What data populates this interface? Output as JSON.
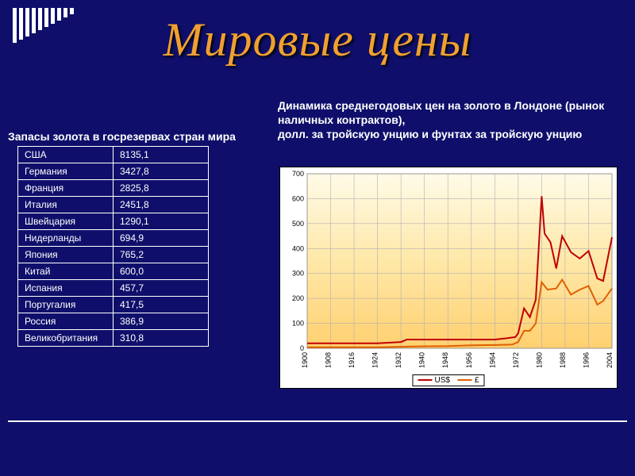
{
  "title": "Мировые цены",
  "decor_bars_heights": [
    44,
    40,
    36,
    32,
    28,
    24,
    20,
    16,
    12,
    8
  ],
  "table": {
    "title": "Запасы золота в госрезервах стран мира",
    "columns_width": [
      120,
      120
    ],
    "rows": [
      [
        "США",
        "8135,1"
      ],
      [
        "Германия",
        "3427,8"
      ],
      [
        "Франция",
        "2825,8"
      ],
      [
        "Италия",
        "2451,8"
      ],
      [
        "Швейцария",
        "1290,1"
      ],
      [
        "Нидерланды",
        "694,9"
      ],
      [
        "Япония",
        "765,2"
      ],
      [
        "Китай",
        "600,0"
      ],
      [
        "Испания",
        "457,7"
      ],
      [
        "Португалия",
        "417,5"
      ],
      [
        "Россия",
        "386,9"
      ],
      [
        "Великобритания",
        "310,8"
      ]
    ],
    "border_color": "#ffffff",
    "text_color": "#ffffff",
    "fontsize": 12
  },
  "chart": {
    "type": "line",
    "title": "Динамика среднегодовых цен на золото в Лондоне (рынок наличных контрактов),\nдолл. за тройскую унцию и фунтах за тройскую унцию",
    "background_color": "#ffffff",
    "plot_bg_gradient": [
      "#ffd070",
      "#ffe8a8",
      "#fffbe8"
    ],
    "grid_color": "#b0b0b0",
    "axis_fontsize": 9,
    "ylim": [
      0,
      700
    ],
    "ytick_step": 100,
    "x_labels": [
      "1900",
      "1908",
      "1916",
      "1924",
      "1932",
      "1940",
      "1948",
      "1956",
      "1964",
      "1972",
      "1980",
      "1988",
      "1996",
      "2004"
    ],
    "x_numeric": [
      1900,
      1908,
      1916,
      1924,
      1932,
      1940,
      1948,
      1956,
      1964,
      1972,
      1980,
      1988,
      1996,
      2004
    ],
    "xlim": [
      1900,
      2004
    ],
    "series": [
      {
        "name": "US$",
        "color": "#c00000",
        "line_width": 2,
        "points": [
          [
            1900,
            20
          ],
          [
            1908,
            20
          ],
          [
            1916,
            20
          ],
          [
            1924,
            20
          ],
          [
            1932,
            25
          ],
          [
            1934,
            35
          ],
          [
            1940,
            35
          ],
          [
            1948,
            35
          ],
          [
            1956,
            35
          ],
          [
            1964,
            35
          ],
          [
            1968,
            40
          ],
          [
            1971,
            45
          ],
          [
            1972,
            60
          ],
          [
            1974,
            160
          ],
          [
            1976,
            125
          ],
          [
            1978,
            195
          ],
          [
            1980,
            610
          ],
          [
            1981,
            460
          ],
          [
            1983,
            425
          ],
          [
            1985,
            320
          ],
          [
            1987,
            450
          ],
          [
            1990,
            385
          ],
          [
            1993,
            360
          ],
          [
            1996,
            390
          ],
          [
            1999,
            280
          ],
          [
            2001,
            270
          ],
          [
            2004,
            445
          ]
        ]
      },
      {
        "name": "£",
        "color": "#e06000",
        "line_width": 2,
        "points": [
          [
            1900,
            4
          ],
          [
            1908,
            4
          ],
          [
            1916,
            4
          ],
          [
            1924,
            4
          ],
          [
            1932,
            6
          ],
          [
            1940,
            8
          ],
          [
            1948,
            9
          ],
          [
            1956,
            12
          ],
          [
            1964,
            13
          ],
          [
            1970,
            15
          ],
          [
            1972,
            25
          ],
          [
            1974,
            70
          ],
          [
            1976,
            70
          ],
          [
            1978,
            100
          ],
          [
            1980,
            265
          ],
          [
            1982,
            235
          ],
          [
            1985,
            240
          ],
          [
            1987,
            275
          ],
          [
            1990,
            215
          ],
          [
            1993,
            235
          ],
          [
            1996,
            250
          ],
          [
            1999,
            175
          ],
          [
            2001,
            190
          ],
          [
            2004,
            240
          ]
        ]
      }
    ],
    "legend": {
      "items": [
        "US$",
        "£"
      ],
      "colors": [
        "#c00000",
        "#e06000"
      ]
    }
  },
  "colors": {
    "page_bg": "#0f0f6b",
    "title_color": "#f0a030",
    "text_color": "#ffffff",
    "hr_color": "#ffffff"
  },
  "fonts": {
    "title_fontsize": 60,
    "title_family": "Times New Roman, serif",
    "title_style": "italic",
    "subtitle_fontsize": 14,
    "subtitle_weight": "bold"
  }
}
